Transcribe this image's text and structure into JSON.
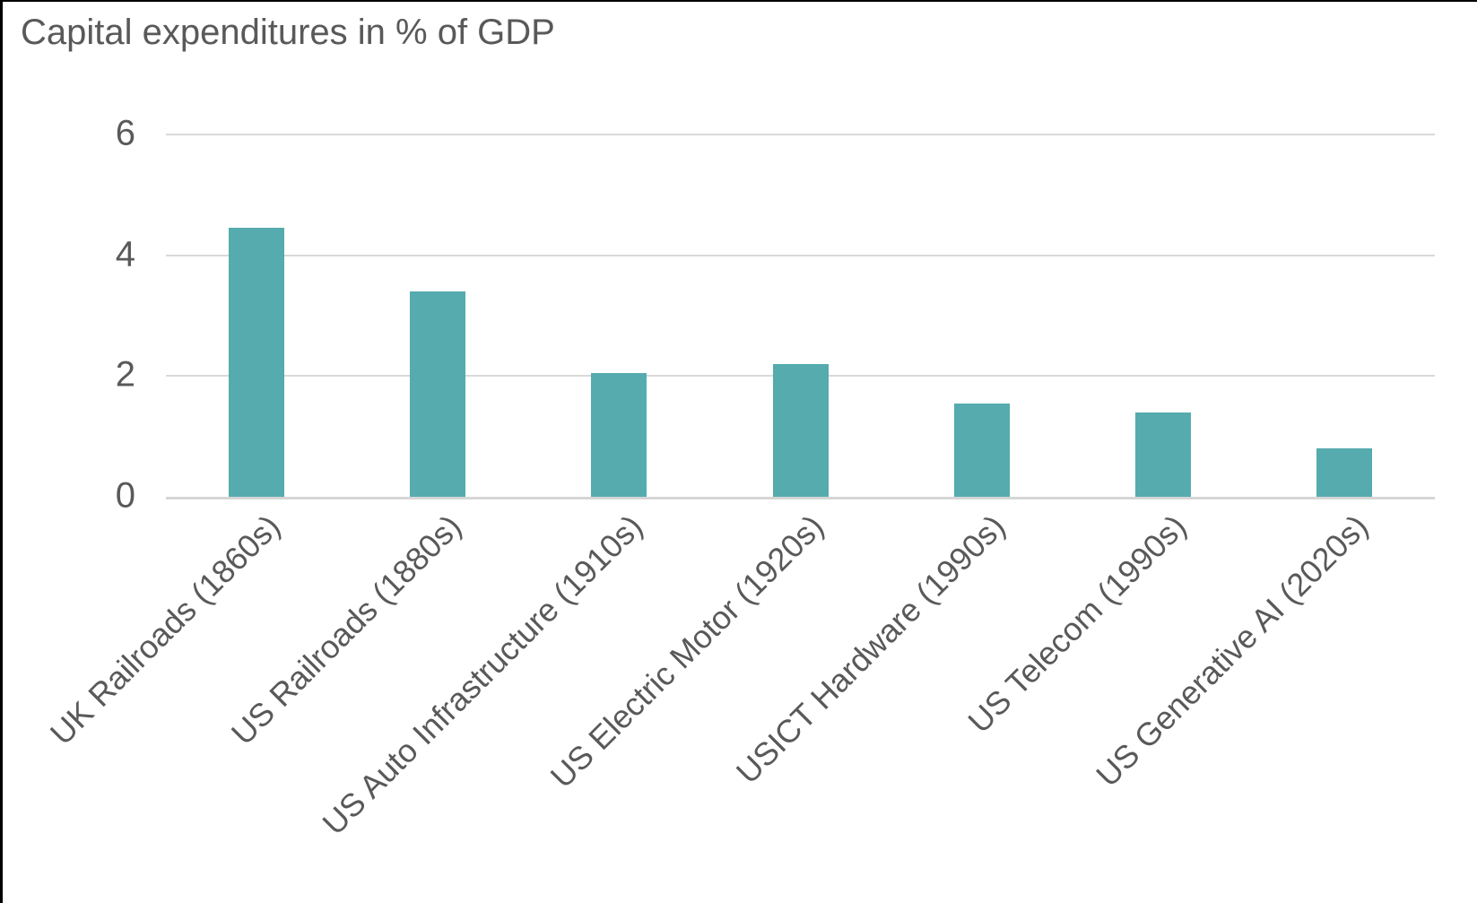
{
  "title": "Capital expenditures in % of GDP",
  "colors": {
    "bar": "#55abad",
    "gridline": "#d9d9d9",
    "axis_line": "#d6d6d6",
    "text": "#595959",
    "frame_border": "#000000",
    "background": "#ffffff"
  },
  "chart_data": {
    "type": "bar",
    "title": "Capital expenditures in % of GDP",
    "categories": [
      "UK Railroads (1860s)",
      "US Railroads (1880s)",
      "US Auto Infrastructure (1910s)",
      "US Electric Motor (1920s)",
      "USICT Hardware (1990s)",
      "US Telecom (1990s)",
      "US Generative AI (2020s)"
    ],
    "values": [
      4.45,
      3.4,
      2.05,
      2.2,
      1.55,
      1.4,
      0.8
    ],
    "xlabel": "",
    "ylabel": "",
    "ylim": [
      0,
      6
    ],
    "yticks": [
      0,
      2,
      4,
      6
    ],
    "grid": true,
    "legend": false,
    "bar_color": "#55abad",
    "category_label_rotation_deg": 45
  }
}
